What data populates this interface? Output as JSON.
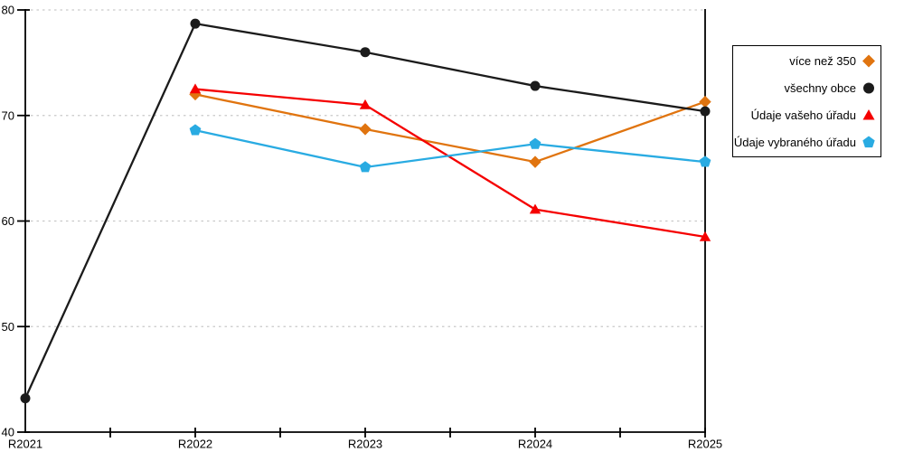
{
  "chart": {
    "background": "#FFFFFF",
    "axis_color": "#000000",
    "grid_color": "#C9C9C9",
    "text_color": "#000000"
  },
  "chart_data": {
    "type": "line",
    "title": "",
    "xlabel": "",
    "ylabel": "",
    "categories": [
      "R2021",
      "R2022",
      "R2023",
      "R2024",
      "R2025"
    ],
    "ylim": [
      40,
      80
    ],
    "yticks": [
      40,
      50,
      60,
      70,
      80
    ],
    "grid": "horizontal dotted gridlines at y ticks",
    "legend_position": "right",
    "series": [
      {
        "name": "více než 350",
        "marker": "diamond",
        "color": "#E0740F",
        "values": [
          null,
          72.0,
          68.7,
          65.6,
          71.3
        ]
      },
      {
        "name": "všechny obce",
        "marker": "circle",
        "color": "#1B1B1B",
        "values": [
          43.2,
          78.7,
          76.0,
          72.8,
          70.4
        ]
      },
      {
        "name": "Údaje vašeho úřadu",
        "marker": "triangle-up",
        "color": "#F50000",
        "values": [
          null,
          72.5,
          71.0,
          61.1,
          58.5
        ]
      },
      {
        "name": "Údaje vybraného úřadu",
        "marker": "pentagon",
        "color": "#29ABE2",
        "values": [
          null,
          68.6,
          65.1,
          67.3,
          65.6
        ]
      }
    ]
  }
}
